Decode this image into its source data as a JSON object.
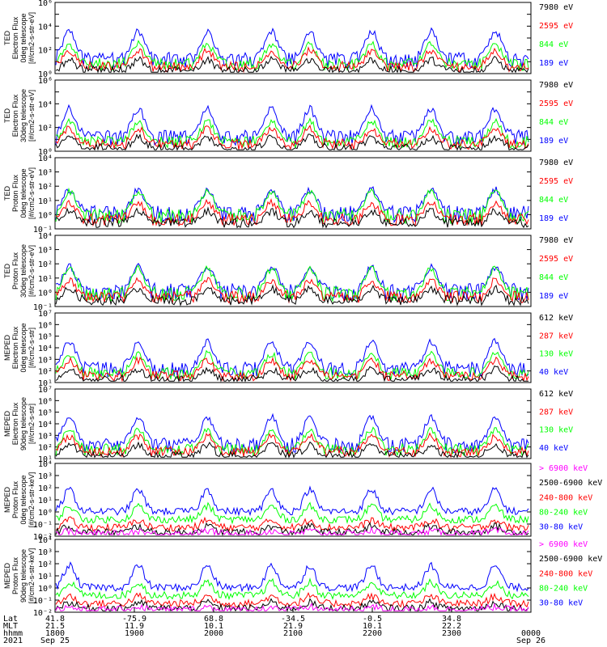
{
  "colors": {
    "blue": "#0000ff",
    "red": "#ff0000",
    "green": "#00ff00",
    "black": "#000000",
    "magenta": "#ff00ff",
    "axis": "#000000"
  },
  "chart_data": [
    {
      "type": "line",
      "panel": 1,
      "ylabel": [
        "TED",
        "Electron Flux",
        "0deg telescope",
        "[#/cm2-s-str-eV]"
      ],
      "yscale": "log",
      "ylim": [
        1,
        1000000
      ],
      "ytick_labels": [
        "10⁰",
        "10²",
        "10⁴",
        "10⁶"
      ],
      "legend": [
        {
          "label": "7980 eV",
          "color": "black"
        },
        {
          "label": "2595 eV",
          "color": "red"
        },
        {
          "label": "844 eV",
          "color": "green"
        },
        {
          "label": "189 eV",
          "color": "blue"
        }
      ]
    },
    {
      "type": "line",
      "panel": 2,
      "ylabel": [
        "TED",
        "Electron Flux",
        "30deg telescope",
        "[#/cm2-s-str-eV]"
      ],
      "yscale": "log",
      "ylim": [
        1,
        1000000
      ],
      "ytick_labels": [
        "10⁰",
        "10²",
        "10⁴",
        "10⁶"
      ],
      "legend": [
        {
          "label": "7980 eV",
          "color": "black"
        },
        {
          "label": "2595 eV",
          "color": "red"
        },
        {
          "label": "844 eV",
          "color": "green"
        },
        {
          "label": "189 eV",
          "color": "blue"
        }
      ]
    },
    {
      "type": "line",
      "panel": 3,
      "ylabel": [
        "TED",
        "Proton Flux",
        "0deg telescope",
        "[#/cm2-s-str-eV]"
      ],
      "yscale": "log",
      "ylim": [
        0.1,
        10000
      ],
      "ytick_labels": [
        "10⁻¹",
        "10⁰",
        "10¹",
        "10²",
        "10³",
        "10⁴"
      ],
      "legend": [
        {
          "label": "7980 eV",
          "color": "black"
        },
        {
          "label": "2595 eV",
          "color": "red"
        },
        {
          "label": "844 eV",
          "color": "green"
        },
        {
          "label": "189 eV",
          "color": "blue"
        }
      ]
    },
    {
      "type": "line",
      "panel": 4,
      "ylabel": [
        "TED",
        "Proton Flux",
        "30deg telescope",
        "[#/cm2-s-str-eV]"
      ],
      "yscale": "log",
      "ylim": [
        0.1,
        10000
      ],
      "ytick_labels": [
        "10⁻¹",
        "10⁰",
        "10¹",
        "10²",
        "10³",
        "10⁴"
      ],
      "legend": [
        {
          "label": "7980 eV",
          "color": "black"
        },
        {
          "label": "2595 eV",
          "color": "red"
        },
        {
          "label": "844 eV",
          "color": "green"
        },
        {
          "label": "189 eV",
          "color": "blue"
        }
      ]
    },
    {
      "type": "line",
      "panel": 5,
      "ylabel": [
        "MEPED",
        "Electron Flux",
        "0deg telescope",
        "[#/cm2-s-str]"
      ],
      "yscale": "log",
      "ylim": [
        10,
        10000000
      ],
      "ytick_labels": [
        "10¹",
        "10²",
        "10³",
        "10⁴",
        "10⁵",
        "10⁶",
        "10⁷"
      ],
      "legend": [
        {
          "label": "612 keV",
          "color": "black"
        },
        {
          "label": "287 keV",
          "color": "red"
        },
        {
          "label": "130 keV",
          "color": "green"
        },
        {
          "label": "40 keV",
          "color": "blue"
        }
      ]
    },
    {
      "type": "line",
      "panel": 6,
      "ylabel": [
        "MEPED",
        "Electron Flux",
        "90deg telescope",
        "[#/cm2-s-str]"
      ],
      "yscale": "log",
      "ylim": [
        10,
        10000000
      ],
      "ytick_labels": [
        "10¹",
        "10²",
        "10³",
        "10⁴",
        "10⁵",
        "10⁶",
        "10⁷"
      ],
      "legend": [
        {
          "label": "612 keV",
          "color": "black"
        },
        {
          "label": "287 keV",
          "color": "red"
        },
        {
          "label": "130 keV",
          "color": "green"
        },
        {
          "label": "40 keV",
          "color": "blue"
        }
      ]
    },
    {
      "type": "line",
      "panel": 7,
      "ylabel": [
        "MEPED",
        "Proton Flux",
        "0deg telescope",
        "[#/cm2-s-str-keV]"
      ],
      "yscale": "log",
      "ylim": [
        0.01,
        10000
      ],
      "ytick_labels": [
        "10⁻²",
        "10⁻¹",
        "10⁰",
        "10¹",
        "10²",
        "10³",
        "10⁴"
      ],
      "legend": [
        {
          "label": "> 6900 keV",
          "color": "magenta"
        },
        {
          "label": "2500-6900 keV",
          "color": "black"
        },
        {
          "label": "240-800 keV",
          "color": "red"
        },
        {
          "label": "80-240 keV",
          "color": "green"
        },
        {
          "label": "30-80 keV",
          "color": "blue"
        }
      ]
    },
    {
      "type": "line",
      "panel": 8,
      "ylabel": [
        "MEPED",
        "Proton Flux",
        "90deg telescope",
        "[#/cm2-s-str-keV]"
      ],
      "yscale": "log",
      "ylim": [
        0.01,
        10000
      ],
      "ytick_labels": [
        "10⁻²",
        "10⁻¹",
        "10⁰",
        "10¹",
        "10²",
        "10³",
        "10⁴"
      ],
      "legend": [
        {
          "label": "> 6900 keV",
          "color": "magenta"
        },
        {
          "label": "2500-6900 keV",
          "color": "black"
        },
        {
          "label": "240-800 keV",
          "color": "red"
        },
        {
          "label": "80-240 keV",
          "color": "green"
        },
        {
          "label": "30-80 keV",
          "color": "blue"
        }
      ]
    }
  ],
  "x_axis": {
    "row_labels": [
      "Lat",
      "MLT",
      "hhmm",
      "2021"
    ],
    "ticks": [
      {
        "lat": "41.8",
        "mlt": "21.5",
        "hhmm": "1800",
        "date": "Sep 25"
      },
      {
        "lat": "-75.9",
        "mlt": "11.9",
        "hhmm": "1900",
        "date": ""
      },
      {
        "lat": "68.8",
        "mlt": "10.1",
        "hhmm": "2000",
        "date": ""
      },
      {
        "lat": "-34.5",
        "mlt": "21.9",
        "hhmm": "2100",
        "date": ""
      },
      {
        "lat": "-0.5",
        "mlt": "10.1",
        "hhmm": "2200",
        "date": ""
      },
      {
        "lat": "34.8",
        "mlt": "22.2",
        "hhmm": "2300",
        "date": ""
      },
      {
        "lat": "",
        "mlt": "",
        "hhmm": "0000",
        "date": "Sep 26"
      }
    ]
  }
}
